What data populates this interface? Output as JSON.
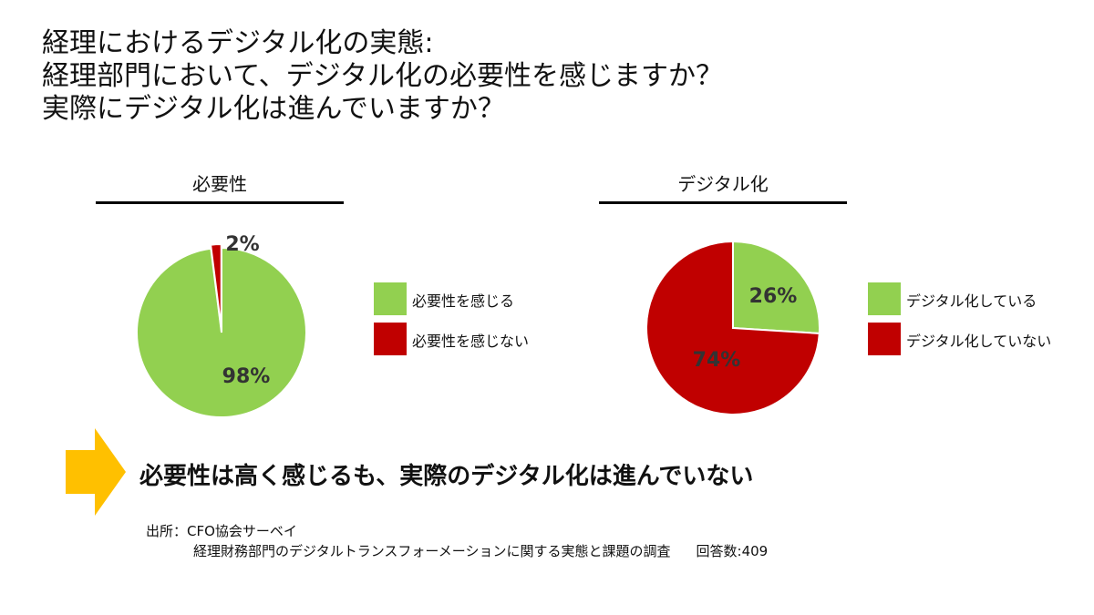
{
  "title": {
    "line1": "経理におけるデジタル化の実態:",
    "line2": "経理部門において、デジタル化の必要性を感じますか？",
    "line3": "実際にデジタル化は進んでいますか？"
  },
  "chart_data": [
    {
      "type": "pie",
      "title": "必要性",
      "categories": [
        "必要性を感じる",
        "必要性を感じない"
      ],
      "values": [
        98,
        2
      ],
      "labels": [
        "98%",
        "2%"
      ],
      "colors": [
        "#92D050",
        "#C00000"
      ],
      "legend": "right"
    },
    {
      "type": "pie",
      "title": "デジタル化",
      "categories": [
        "デジタル化している",
        "デジタル化していない"
      ],
      "values": [
        26,
        74
      ],
      "labels": [
        "26%",
        "74%"
      ],
      "colors": [
        "#92D050",
        "#C00000"
      ],
      "legend": "right"
    }
  ],
  "conclusion": "必要性は高く感じるも、実際のデジタル化は進んでいない",
  "arrow_color": "#FFC000",
  "source": {
    "label": "出所：CFO協会サーベイ",
    "detail": "経理財務部門のデジタルトランスフォーメーションに関する実態と課題の調査",
    "responses": "回答数:409"
  }
}
